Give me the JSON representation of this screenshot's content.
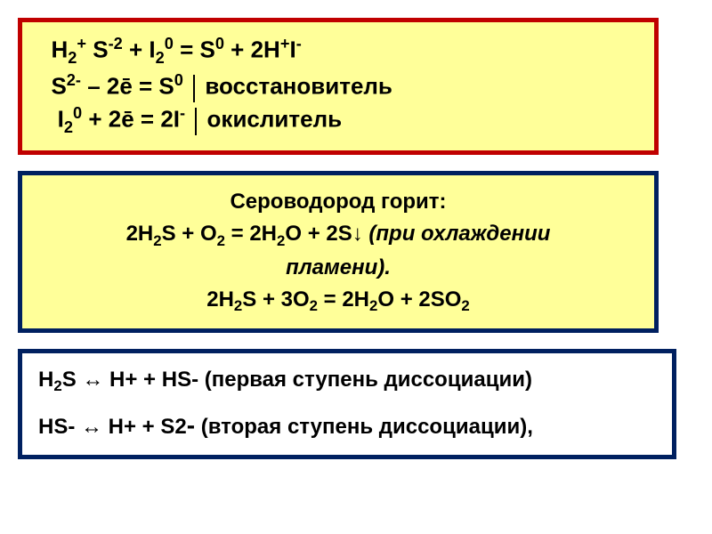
{
  "box1": {
    "background_color": "#ffff99",
    "border_color": "#c00000",
    "border_width": 5,
    "font_size_top": 26,
    "font_size_sub": 26,
    "line1_html": "&nbsp;&nbsp;H<sub>2</sub><sup>+</sup> S<sup>-2</sup> + I<sub>2</sub><sup>0</sup> = S<sup>0</sup> + 2H<sup>+</sup>I<sup>-</sup>",
    "line2_html": "&nbsp;&nbsp;S<sup>2-</sup> – 2ē = S<sup>0</sup> <span class=\"vbar\"></span> восстановитель",
    "line3_html": "&nbsp;&nbsp;&nbsp;I<sub>2</sub><sup>0</sup> + 2ē = 2I<sup>-</sup> <span class=\"vbar\"></span> окислитель"
  },
  "box2": {
    "background_color": "#ffff99",
    "border_color": "#002060",
    "border_width": 5,
    "font_size": 24,
    "line1": "Сероводород горит:",
    "line2_html": "2H<sub>2</sub>S + O<sub>2</sub> = 2H<sub>2</sub>O + 2S↓ <span class=\"italic\">(при охлаждении</span>",
    "line3_html": "<span class=\"italic\">пламени).</span>",
    "line4_html": "2H<sub>2</sub>S + 3O<sub>2</sub> = 2H<sub>2</sub>O + 2SO<sub>2</sub>"
  },
  "box3": {
    "background_color": "#ffffff",
    "border_color": "#002060",
    "border_width": 5,
    "font_size": 24,
    "line1_html": "H<sub>2</sub>S ↔ H+ + HS- (первая ступень диссоциации)",
    "line2_html": "HS- ↔ H+ + S2<span style=\"font-size:28px\">-</span> (вторая ступень диссоциации),"
  }
}
